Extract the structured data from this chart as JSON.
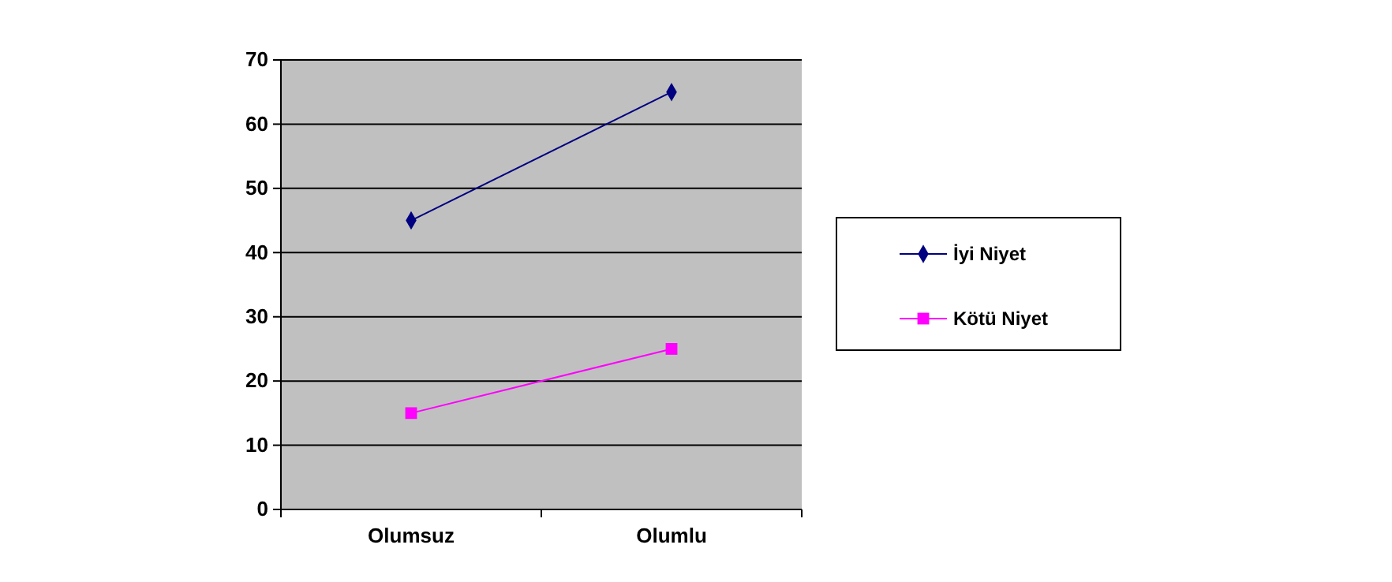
{
  "chart_data": {
    "type": "line",
    "categories": [
      "Olumsuz",
      "Olumlu"
    ],
    "series": [
      {
        "name": "İyi Niyet",
        "color": "#000080",
        "values": [
          45,
          65
        ],
        "marker": "diamond"
      },
      {
        "name": "Kötü Niyet",
        "color": "#ff00ff",
        "values": [
          15,
          25
        ],
        "marker": "square"
      }
    ],
    "ylim": [
      0,
      70
    ],
    "yticks": [
      0,
      10,
      20,
      30,
      40,
      50,
      60,
      70
    ],
    "grid": "y",
    "legend": "right",
    "line_style": "solid"
  }
}
